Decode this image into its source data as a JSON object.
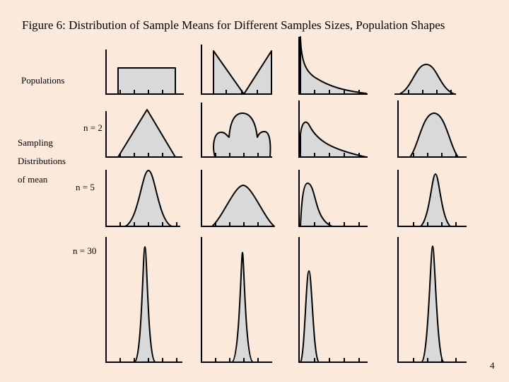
{
  "slide": {
    "title": "Figure 6: Distribution of Sample Means for Different Samples Sizes, Population Shapes",
    "page_number": "4"
  },
  "labels": {
    "populations": "Populations",
    "sampling": "Sampling",
    "distributions": "Distributions",
    "of_mean": "of mean",
    "n2": "n = 2",
    "n5": "n = 5",
    "n30": "n = 30"
  },
  "colors": {
    "background": "#fbeadb",
    "curve_fill": "#d9d9d9",
    "stroke": "#000000"
  }
}
